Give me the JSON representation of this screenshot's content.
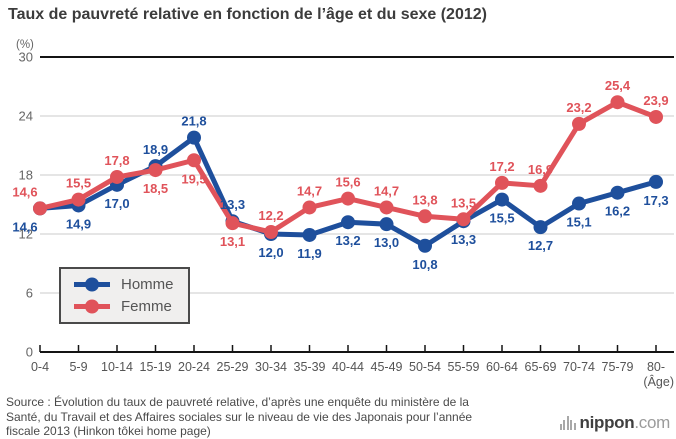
{
  "chart_data": {
    "type": "line",
    "title": "Taux de pauvreté relative en fonction de l’âge et du sexe (2012)",
    "unit_label": "(%)",
    "age_axis_label": "(Âge)",
    "ylim": [
      0,
      30
    ],
    "y_ticks": [
      0,
      6,
      12,
      18,
      24,
      30
    ],
    "grid": true,
    "legend_position": "left-middle",
    "categories": [
      "0-4",
      "5-9",
      "10-14",
      "15-19",
      "20-24",
      "25-29",
      "30-34",
      "35-39",
      "40-44",
      "45-49",
      "50-54",
      "55-59",
      "60-64",
      "65-69",
      "70-74",
      "75-79",
      "80-"
    ],
    "series": [
      {
        "name": "Homme",
        "color": "#1e4f9c",
        "values": [
          14.6,
          14.9,
          17.0,
          18.9,
          21.8,
          13.3,
          12.0,
          11.9,
          13.2,
          13.0,
          10.8,
          13.3,
          15.5,
          12.7,
          15.1,
          16.2,
          17.3
        ]
      },
      {
        "name": "Femme",
        "color": "#e0535a",
        "values": [
          14.6,
          15.5,
          17.8,
          18.5,
          19.5,
          13.1,
          12.2,
          14.7,
          15.6,
          14.7,
          13.8,
          13.5,
          17.2,
          16.9,
          23.2,
          25.4,
          23.9
        ]
      }
    ]
  },
  "footer": {
    "source_lines": [
      "Source : Évolution du taux de pauvreté relative, d’après une enquête du ministère de la",
      "Santé, du Travail et des Affaires sociales sur le niveau de vie des Japonais pour l’année",
      "fiscale 2013 (Hinkon tôkei home page)"
    ],
    "logo_bold": "nippon",
    "logo_light": ".com"
  }
}
